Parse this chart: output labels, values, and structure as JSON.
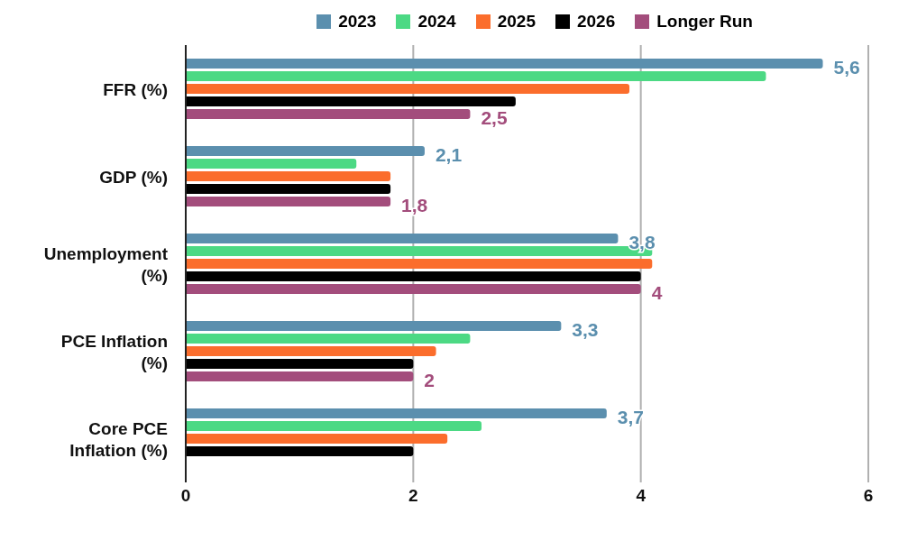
{
  "chart_data": {
    "type": "bar",
    "orientation": "horizontal",
    "categories": [
      "FFR (%)",
      "GDP (%)",
      "Unemployment (%)",
      "PCE Inflation (%)",
      "Core PCE Inflation (%)"
    ],
    "series": [
      {
        "name": "2023",
        "color": "#5b8fae",
        "values": [
          5.6,
          2.1,
          3.8,
          3.3,
          3.7
        ],
        "value_labels": [
          "5,6",
          "2,1",
          "3,8",
          "3,3",
          "3,7"
        ]
      },
      {
        "name": "2024",
        "color": "#4cd984",
        "values": [
          5.1,
          1.5,
          4.1,
          2.5,
          2.6
        ]
      },
      {
        "name": "2025",
        "color": "#fb6d2c",
        "values": [
          3.9,
          1.8,
          4.1,
          2.2,
          2.3
        ]
      },
      {
        "name": "2026",
        "color": "#000000",
        "values": [
          2.9,
          1.8,
          4.0,
          2.0,
          2.0
        ]
      },
      {
        "name": "Longer Run",
        "color": "#a34d7c",
        "values": [
          2.5,
          1.8,
          4.0,
          2.0,
          null
        ],
        "value_labels": [
          "2,5",
          "1,8",
          "4",
          "2",
          null
        ]
      }
    ],
    "xlim": [
      0,
      6
    ],
    "xticks": [
      0,
      2,
      4,
      6
    ],
    "grid": "x",
    "legend": "top"
  }
}
